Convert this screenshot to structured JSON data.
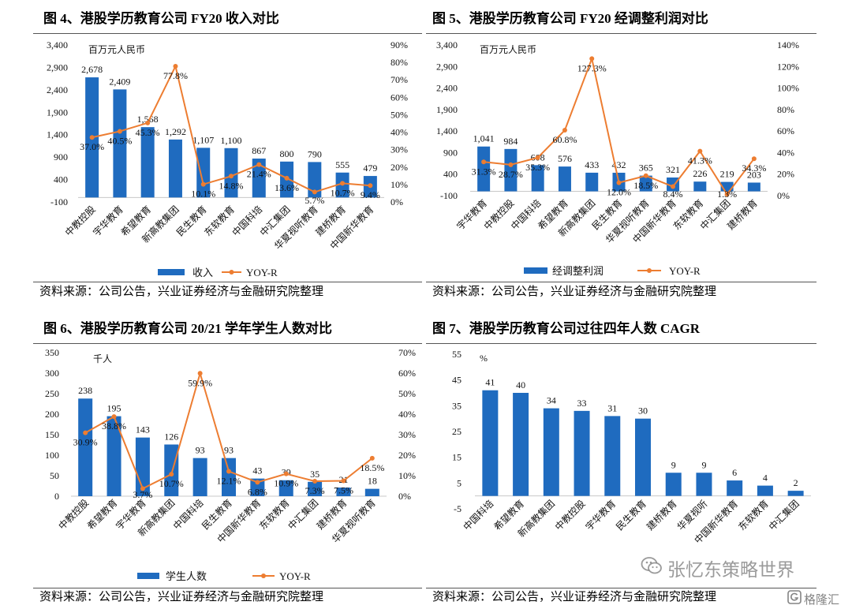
{
  "colors": {
    "bar": "#1f6bbf",
    "line": "#ed7d31"
  },
  "watermark": {
    "text": "张忆东策略世界",
    "logo_text": "格隆汇"
  },
  "chart_data": [
    {
      "type": "bar",
      "title": "图 4、港股学历教育公司 FY20 收入对比",
      "unit_label": "百万元人民币",
      "categories": [
        "中教控股",
        "宇华教育",
        "希望教育",
        "新高教集团",
        "民生教育",
        "东软教育",
        "中国科培",
        "中汇集团",
        "华夏视听教育",
        "建桥教育",
        "中国新华教育"
      ],
      "series": [
        {
          "name": "收入",
          "kind": "bar",
          "axis": "left",
          "values": [
            2678,
            2409,
            1568,
            1292,
            1107,
            1100,
            867,
            800,
            790,
            555,
            479
          ],
          "labels": [
            "2,678",
            "2,409",
            "1,568",
            "1,292",
            "1,107",
            "1,100",
            "867",
            "800",
            "790",
            "555",
            "479"
          ]
        },
        {
          "name": "YOY-R",
          "kind": "line",
          "axis": "right",
          "values": [
            37.0,
            40.5,
            45.3,
            77.8,
            10.1,
            14.8,
            21.4,
            13.6,
            5.7,
            10.7,
            9.4
          ],
          "labels": [
            "37.0%",
            "40.5%",
            "45.3%",
            "77.8%",
            "10.1%",
            "14.8%",
            "21.4%",
            "13.6%",
            "5.7%",
            "10.7%",
            "9.4%"
          ]
        }
      ],
      "y_left": {
        "min": -100,
        "max": 3400,
        "tick_labels": [
          "-100",
          "400",
          "900",
          "1,400",
          "1,900",
          "2,400",
          "2,900",
          "3,400"
        ]
      },
      "y_right": {
        "min": 0,
        "max": 90,
        "tick_labels": [
          "0%",
          "10%",
          "20%",
          "30%",
          "40%",
          "50%",
          "60%",
          "70%",
          "80%",
          "90%"
        ]
      },
      "legend": "bottom",
      "grid": false,
      "source": "资料来源：公司公告，兴业证券经济与金融研究院整理"
    },
    {
      "type": "bar",
      "title": "图 5、港股学历教育公司 FY20 经调整利润对比",
      "unit_label": "百万元人民币",
      "categories": [
        "宇华教育",
        "中教控股",
        "中国科培",
        "希望教育",
        "新高教集团",
        "民生教育",
        "华夏视听教育",
        "中国新华教育",
        "东软教育",
        "中汇集团",
        "建桥教育"
      ],
      "series": [
        {
          "name": "经调整利润",
          "kind": "bar",
          "axis": "left",
          "values": [
            1041,
            984,
            608,
            576,
            433,
            432,
            365,
            321,
            226,
            219,
            203
          ],
          "labels": [
            "1,041",
            "984",
            "608",
            "576",
            "433",
            "432",
            "365",
            "321",
            "226",
            "219",
            "203"
          ]
        },
        {
          "name": "YOY-R",
          "kind": "line",
          "axis": "right",
          "values": [
            31.3,
            28.7,
            35.3,
            60.8,
            127.3,
            12.0,
            18.5,
            8.4,
            41.3,
            1.3,
            34.3
          ],
          "labels": [
            "31.3%",
            "28.7%",
            "35.3%",
            "60.8%",
            "127.3%",
            "12.0%",
            "18.5%",
            "8.4%",
            "41.3%",
            "1.3%",
            "34.3%"
          ]
        }
      ],
      "y_left": {
        "min": -100,
        "max": 3400,
        "tick_labels": [
          "-100",
          "400",
          "900",
          "1,400",
          "1,900",
          "2,400",
          "2,900",
          "3,400"
        ]
      },
      "y_right": {
        "min": 0,
        "max": 140,
        "tick_labels": [
          "0%",
          "20%",
          "40%",
          "60%",
          "80%",
          "100%",
          "120%",
          "140%"
        ]
      },
      "legend": "bottom",
      "grid": false,
      "source": "资料来源：公司公告，兴业证券经济与金融研究院整理"
    },
    {
      "type": "bar",
      "title": "图 6、港股学历教育公司 20/21 学年学生人数对比",
      "unit_label": "千人",
      "categories": [
        "中教控股",
        "希望教育",
        "宇华教育",
        "新高教集团",
        "中国科培",
        "民生教育",
        "中国新华教育",
        "东软教育",
        "中汇集团",
        "建桥教育",
        "华夏视听教育"
      ],
      "series": [
        {
          "name": "学生人数",
          "kind": "bar",
          "axis": "left",
          "values": [
            238,
            195,
            143,
            126,
            93,
            93,
            43,
            39,
            35,
            21,
            18
          ],
          "labels": [
            "238",
            "195",
            "143",
            "126",
            "93",
            "93",
            "43",
            "39",
            "35",
            "21",
            "18"
          ]
        },
        {
          "name": "YOY-R",
          "kind": "line",
          "axis": "right",
          "values": [
            30.9,
            38.8,
            3.7,
            10.7,
            59.9,
            12.1,
            6.8,
            10.9,
            7.3,
            7.5,
            18.5
          ],
          "labels": [
            "30.9%",
            "38.8%",
            "3.7%",
            "10.7%",
            "59.9%",
            "12.1%",
            "6.8%",
            "10.9%",
            "7.3%",
            "7.5%",
            "18.5%"
          ]
        }
      ],
      "y_left": {
        "min": 0,
        "max": 350,
        "tick_labels": [
          "0",
          "50",
          "100",
          "150",
          "200",
          "250",
          "300",
          "350"
        ]
      },
      "y_right": {
        "min": 0,
        "max": 70,
        "tick_labels": [
          "0%",
          "10%",
          "20%",
          "30%",
          "40%",
          "50%",
          "60%",
          "70%"
        ]
      },
      "legend": "bottom",
      "grid": false,
      "source": "资料来源：公司公告，兴业证券经济与金融研究院整理"
    },
    {
      "type": "bar",
      "title": "图 7、港股学历教育公司过往四年人数 CAGR",
      "unit_label": "%",
      "categories": [
        "中国科培",
        "希望教育",
        "新高教集团",
        "中教控股",
        "宇华教育",
        "民生教育",
        "建桥教育",
        "华夏视听",
        "中国新华教育",
        "东软教育",
        "中汇集团"
      ],
      "series": [
        {
          "kind": "bar",
          "axis": "left",
          "values": [
            41,
            40,
            34,
            33,
            31,
            30,
            9,
            9,
            6,
            4,
            2
          ],
          "labels": [
            "41",
            "40",
            "34",
            "33",
            "31",
            "30",
            "9",
            "9",
            "6",
            "4",
            "2"
          ]
        }
      ],
      "y_left": {
        "min": -5,
        "max": 55,
        "tick_labels": [
          "-5",
          "5",
          "15",
          "25",
          "35",
          "45",
          "55"
        ]
      },
      "grid": false,
      "source": "资料来源：公司公告，兴业证券经济与金融研究院整理"
    }
  ]
}
